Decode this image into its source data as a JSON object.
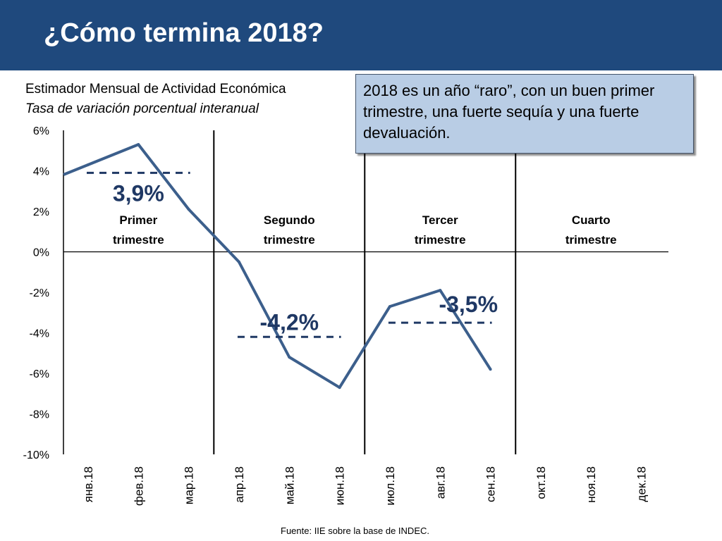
{
  "header": {
    "title": "¿Cómo termina 2018?"
  },
  "chart_data": {
    "type": "line",
    "title": "Estimador Mensual de Actividad Económica",
    "subtitle": "Tasa de variación porcentual interanual",
    "categories": [
      "янв.18",
      "фев.18",
      "мар.18",
      "апр.18",
      "май.18",
      "июн.18",
      "июл.18",
      "авг.18",
      "сен.18",
      "окт.18",
      "ноя.18",
      "дек.18"
    ],
    "series": [
      {
        "values": [
          4.3,
          5.3,
          2.1,
          -0.5,
          -5.2,
          -6.7,
          -2.7,
          -1.9,
          -5.8,
          null,
          null,
          null
        ]
      }
    ],
    "ylim": [
      -10,
      6
    ],
    "yticks": [
      6,
      4,
      2,
      0,
      -2,
      -4,
      -6,
      -8,
      -10
    ],
    "ytick_labels": [
      "6%",
      "4%",
      "2%",
      "0%",
      "-2%",
      "-4%",
      "-6%",
      "-8%",
      "-10%"
    ],
    "quarters": [
      {
        "label_line1": "Primer",
        "label_line2": "trimestre",
        "average": 3.9,
        "average_label": "3,9%"
      },
      {
        "label_line1": "Segundo",
        "label_line2": "trimestre",
        "average": -4.2,
        "average_label": "-4,2%"
      },
      {
        "label_line1": "Tercer",
        "label_line2": "trimestre",
        "average": -3.5,
        "average_label": "-3,5%"
      },
      {
        "label_line1": "Cuarto",
        "label_line2": "trimestre",
        "average": null,
        "average_label": ""
      }
    ],
    "line_color": "#3c5f8c",
    "avg_line_color": "#1f3864"
  },
  "note": "2018 es un año “raro”, con un buen primer trimestre, una fuerte sequía y una fuerte devaluación.",
  "source": "Fuente: IIE sobre la base de INDEC.",
  "colors": {
    "title_bar": "#1f497d",
    "note_bg": "#b9cde5"
  }
}
